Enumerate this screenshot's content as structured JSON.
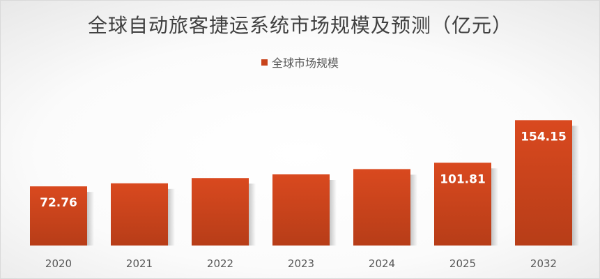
{
  "chart_data": {
    "type": "bar",
    "title": "全球自动旅客捷运系统市场规模及预测（亿元）",
    "categories": [
      "2020",
      "2021",
      "2022",
      "2023",
      "2024",
      "2025",
      "2032"
    ],
    "series": [
      {
        "name": "全球市场规模",
        "values": [
          72.76,
          76.5,
          83,
          87.5,
          94,
          101.81,
          154.15
        ],
        "data_labels": [
          "72.76",
          "",
          "",
          "",
          "",
          "101.81",
          "154.15"
        ]
      }
    ],
    "ylim": [
      0,
      175
    ],
    "grid": false,
    "legend": "top-center",
    "colors": {
      "bar_top": "#d9491f",
      "bar_bottom": "#b73d18",
      "accent": "#c8431b"
    }
  }
}
